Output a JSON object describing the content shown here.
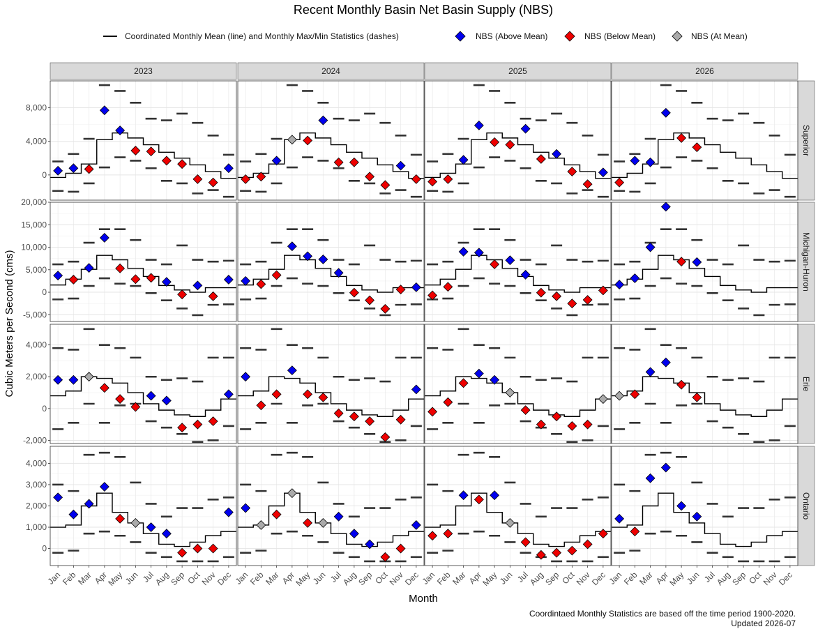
{
  "chart_data": {
    "type": "scatter",
    "title": "Recent Monthly Basin Net Basin Supply (NBS)",
    "xlabel": "Month",
    "ylabel": "Cubic Meters per Second (cms)",
    "caption_line1": "Coordintaed Monthly Statistics are based off the time period 1900-2020.",
    "caption_line2": "Updated 2026-07",
    "legend": {
      "line_label": "Coordinated Monthly Mean (line) and Monthly Max/Min Statistics (dashes)",
      "series": [
        {
          "key": "above",
          "label": "NBS (Above Mean)",
          "color": "#0000ee"
        },
        {
          "key": "below",
          "label": "NBS (Below Mean)",
          "color": "#ee0000"
        },
        {
          "key": "at",
          "label": "NBS (At Mean)",
          "color": "#aaaaaa"
        }
      ]
    },
    "colors": {
      "above": "#0000ee",
      "below": "#ee0000",
      "at": "#aaaaaa",
      "strip": "#d9d9d9",
      "dash": "#333333"
    },
    "months": [
      "Jan",
      "Feb",
      "Mar",
      "Apr",
      "May",
      "Jun",
      "Jul",
      "Aug",
      "Sep",
      "Oct",
      "Nov",
      "Dec"
    ],
    "years": [
      "2023",
      "2024",
      "2025",
      "2026"
    ],
    "lakes": [
      {
        "name": "Superior",
        "ylim": [
          -3000,
          11200
        ],
        "ticks": [
          0,
          4000,
          8000
        ],
        "tick_labels": [
          "0",
          "4,000",
          "8,000"
        ],
        "mean": [
          -300,
          200,
          1300,
          4200,
          5000,
          4400,
          3600,
          2700,
          2000,
          1200,
          400,
          -400
        ],
        "max": [
          1600,
          2500,
          4300,
          10700,
          10000,
          8600,
          6700,
          6500,
          7300,
          6200,
          4700,
          2400
        ],
        "min": [
          -1900,
          -2000,
          -1000,
          900,
          2100,
          1700,
          800,
          -700,
          -1000,
          -2200,
          -1800,
          -2600
        ],
        "obs": [
          [
            500,
            800,
            700,
            7700,
            5300,
            2900,
            2800,
            1700,
            1300,
            -500,
            -900,
            800
          ],
          [
            -500,
            -200,
            1700,
            4200,
            4100,
            6500,
            1500,
            1500,
            -200,
            -1200,
            1100,
            -500
          ],
          [
            -800,
            -500,
            1800,
            5900,
            3900,
            3600,
            5500,
            1900,
            2500,
            400,
            -1100,
            300
          ],
          [
            -900,
            1700,
            1500,
            7400,
            4400,
            3300,
            null,
            null,
            null,
            null,
            null,
            null
          ]
        ]
      },
      {
        "name": "Michigan-Huron",
        "ylim": [
          -6500,
          20000
        ],
        "ticks": [
          -5000,
          0,
          5000,
          10000,
          15000,
          20000
        ],
        "tick_labels": [
          "-5,000",
          "0",
          "5,000",
          "10,000",
          "15,000",
          "20,000"
        ],
        "mean": [
          1600,
          2900,
          5100,
          8200,
          7200,
          5300,
          3500,
          1500,
          500,
          0,
          1000,
          1000
        ],
        "max": [
          6200,
          6800,
          11000,
          14000,
          14000,
          11600,
          7200,
          6200,
          10400,
          7200,
          6800,
          7000
        ],
        "min": [
          -1600,
          -1400,
          1400,
          3100,
          1900,
          1400,
          -200,
          -1800,
          -3600,
          -5100,
          -2800,
          -2700
        ],
        "obs": [
          [
            3700,
            2800,
            5400,
            12100,
            5300,
            2900,
            3200,
            2300,
            -500,
            1500,
            -900,
            2800
          ],
          [
            2500,
            1800,
            3800,
            10200,
            8000,
            7300,
            4300,
            -100,
            -1800,
            -3700,
            600,
            1100
          ],
          [
            -700,
            1200,
            9000,
            8800,
            6200,
            7100,
            3900,
            -100,
            -900,
            -2500,
            -1700,
            400
          ],
          [
            1700,
            3100,
            10000,
            19000,
            6800,
            6700,
            null,
            null,
            null,
            null,
            null,
            null
          ]
        ]
      },
      {
        "name": "Erie",
        "ylim": [
          -2200,
          5300
        ],
        "ticks": [
          -2000,
          0,
          2000,
          4000
        ],
        "tick_labels": [
          "-2,000",
          "0",
          "2,000",
          "4,000"
        ],
        "mean": [
          800,
          1100,
          2000,
          1900,
          1600,
          1000,
          300,
          -100,
          -400,
          -500,
          -100,
          600
        ],
        "max": [
          3800,
          3700,
          5000,
          4000,
          3800,
          3200,
          2000,
          1800,
          1900,
          1700,
          3200,
          3200
        ],
        "min": [
          -1300,
          -900,
          300,
          -900,
          200,
          300,
          -800,
          -1200,
          -1600,
          -2100,
          -2000,
          -1100
        ],
        "obs": [
          [
            1800,
            1800,
            2000,
            1300,
            600,
            100,
            800,
            500,
            -1200,
            -1000,
            -800,
            900
          ],
          [
            2000,
            200,
            900,
            2400,
            900,
            700,
            -300,
            -500,
            -800,
            -1800,
            -700,
            1200
          ],
          [
            -200,
            400,
            1600,
            2200,
            1800,
            1000,
            -100,
            -1000,
            -500,
            -1100,
            -1000,
            600
          ],
          [
            800,
            900,
            2300,
            2900,
            1500,
            700,
            null,
            null,
            null,
            null,
            null,
            null
          ]
        ]
      },
      {
        "name": "Ontario",
        "ylim": [
          -800,
          4800
        ],
        "ticks": [
          0,
          1000,
          2000,
          3000,
          4000
        ],
        "tick_labels": [
          "0",
          "1,000",
          "2,000",
          "3,000",
          "4,000"
        ],
        "mean": [
          1000,
          1100,
          2000,
          2600,
          1700,
          1200,
          700,
          200,
          100,
          300,
          600,
          800
        ],
        "max": [
          3000,
          2700,
          4400,
          4500,
          4300,
          3100,
          2100,
          1500,
          1900,
          1900,
          2300,
          2400
        ],
        "min": [
          -200,
          -100,
          700,
          800,
          600,
          300,
          -200,
          -400,
          -600,
          -600,
          -600,
          -400
        ],
        "obs": [
          [
            2400,
            1600,
            2100,
            2900,
            1400,
            1200,
            1000,
            700,
            -200,
            0,
            0,
            1700
          ],
          [
            1900,
            1100,
            1600,
            2600,
            1200,
            1200,
            1500,
            700,
            200,
            -400,
            0,
            1100
          ],
          [
            600,
            700,
            2500,
            2300,
            2500,
            1200,
            300,
            -300,
            -200,
            -100,
            200,
            700
          ],
          [
            1400,
            800,
            3300,
            3800,
            2000,
            1500,
            null,
            null,
            null,
            null,
            null,
            null
          ]
        ]
      }
    ]
  }
}
